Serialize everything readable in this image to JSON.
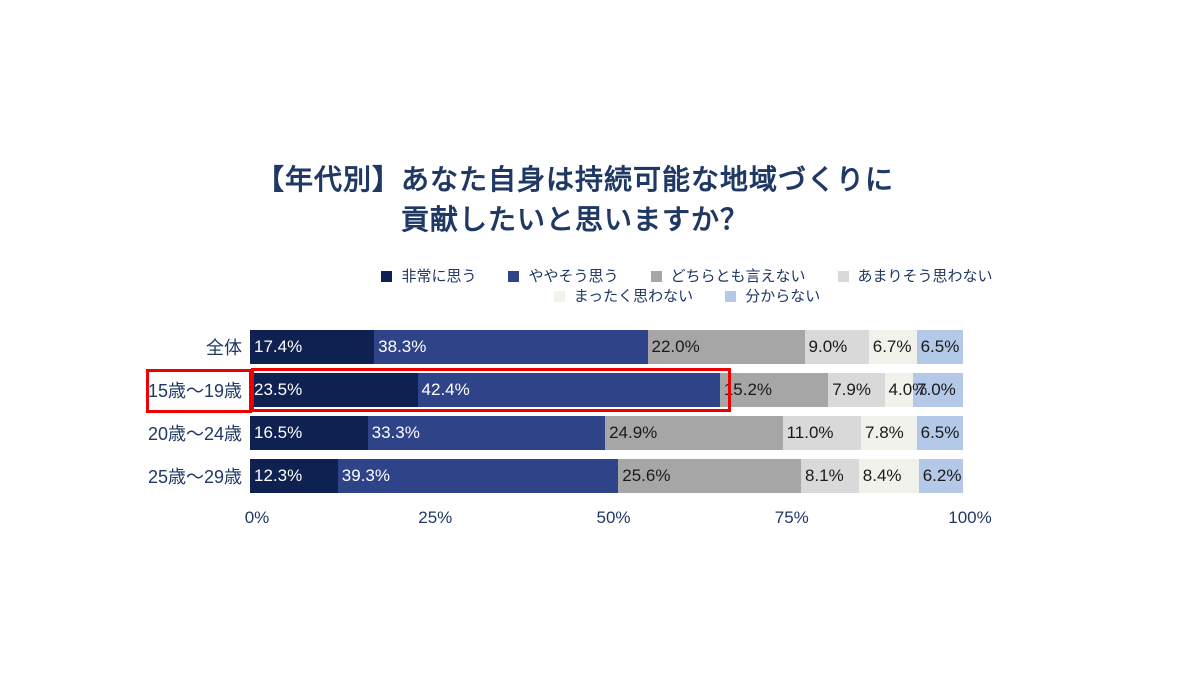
{
  "title": {
    "line1": "【年代別】あなた自身は持続可能な地域づくりに",
    "line2": "貢献したいと思いますか？"
  },
  "chart_data": {
    "type": "bar",
    "orientation": "horizontal-stacked",
    "title": "【年代別】あなた自身は持続可能な地域づくりに貢献したいと思いますか？",
    "categories": [
      "全体",
      "15歳〜19歳",
      "20歳〜24歳",
      "25歳〜29歳"
    ],
    "series": [
      {
        "name": "非常に思う",
        "color": "#0E2150",
        "label_color": "#ffffff",
        "values": [
          17.4,
          23.5,
          16.5,
          12.3
        ]
      },
      {
        "name": "ややそう思う",
        "color": "#2F4488",
        "label_color": "#ffffff",
        "values": [
          38.3,
          42.4,
          33.3,
          39.3
        ]
      },
      {
        "name": "どちらとも言えない",
        "color": "#A6A6A6",
        "label_color": "#1a1a1a",
        "values": [
          22.0,
          15.2,
          24.9,
          25.6
        ]
      },
      {
        "name": "あまりそう思わない",
        "color": "#D9D9D9",
        "label_color": "#1a1a1a",
        "values": [
          9.0,
          7.9,
          11.0,
          8.1
        ]
      },
      {
        "name": "まったく思わない",
        "color": "#F2F2EC",
        "label_color": "#1a1a1a",
        "values": [
          6.7,
          4.0,
          7.8,
          8.4
        ]
      },
      {
        "name": "分からない",
        "color": "#B4C9E8",
        "label_color": "#1a1a1a",
        "values": [
          6.5,
          7.0,
          6.5,
          6.2
        ]
      }
    ],
    "value_suffix": "%",
    "x_ticks": [
      "0%",
      "25%",
      "50%",
      "75%",
      "100%"
    ],
    "x_tick_positions": [
      0,
      25,
      50,
      75,
      100
    ],
    "xlim": [
      0,
      100
    ],
    "legend_rows": [
      4,
      2
    ],
    "legend_position": "top-center",
    "grid": false
  },
  "highlight": {
    "color": "#EE0000",
    "highlighted_category": "15歳〜19歳",
    "highlighted_segments": [
      "非常に思う",
      "ややそう思う"
    ]
  },
  "theme": {
    "text_color": "#1F3864",
    "background": "#ffffff"
  }
}
